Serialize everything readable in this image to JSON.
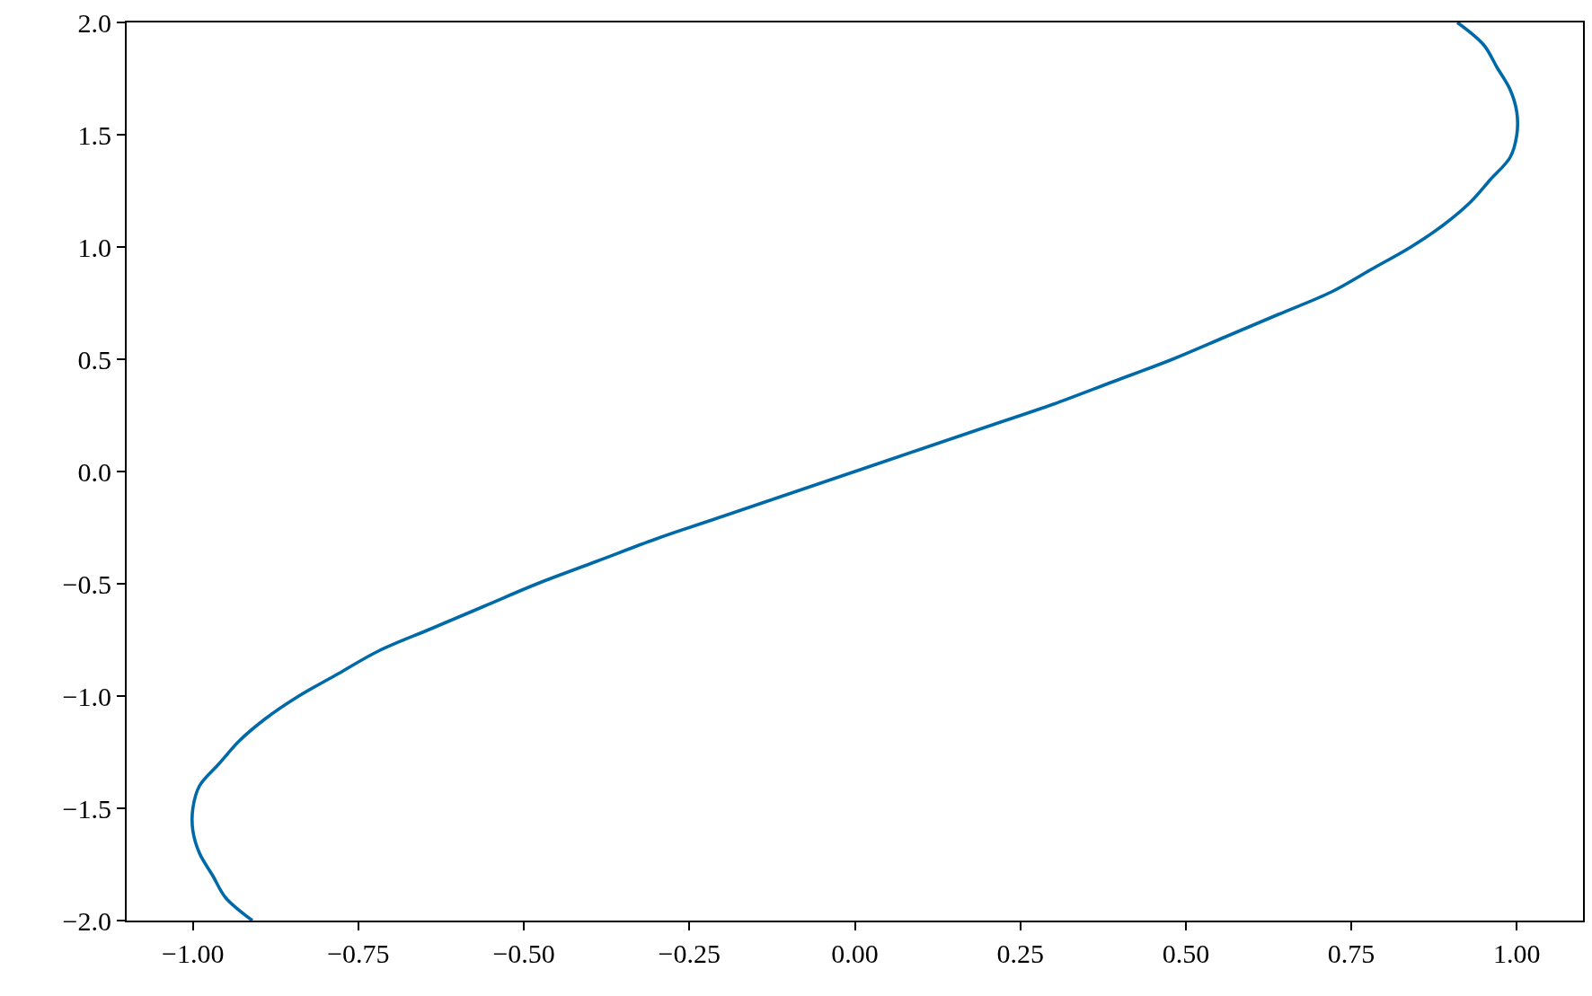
{
  "chart_data": {
    "type": "line",
    "series": [
      {
        "color": "#0069a8",
        "x": [
          -0.91,
          -0.95,
          -0.97,
          -0.99,
          -1.0,
          -1.0,
          -0.99,
          -0.96,
          -0.93,
          -0.89,
          -0.84,
          -0.78,
          -0.72,
          -0.64,
          -0.56,
          -0.48,
          -0.39,
          -0.3,
          -0.2,
          -0.1,
          0,
          0.1,
          0.2,
          0.3,
          0.39,
          0.48,
          0.56,
          0.64,
          0.72,
          0.78,
          0.84,
          0.89,
          0.93,
          0.96,
          0.99,
          1.0,
          1.0,
          0.99,
          0.97,
          0.95,
          0.91
        ],
        "values": [
          -2.0,
          -1.9,
          -1.8,
          -1.7,
          -1.6,
          -1.5,
          -1.4,
          -1.3,
          -1.2,
          -1.1,
          -1.0,
          -0.9,
          -0.8,
          -0.7,
          -0.6,
          -0.5,
          -0.4,
          -0.3,
          -0.2,
          -0.1,
          0,
          0.1,
          0.2,
          0.3,
          0.4,
          0.5,
          0.6,
          0.7,
          0.8,
          0.9,
          1.0,
          1.1,
          1.2,
          1.3,
          1.4,
          1.5,
          1.6,
          1.7,
          1.8,
          1.9,
          2.0
        ]
      }
    ],
    "xlim": [
      -1.1,
      1.1
    ],
    "ylim": [
      -2,
      2
    ],
    "xticks": [
      {
        "value": -1,
        "label": "−1.00"
      },
      {
        "value": -0.75,
        "label": "−0.75"
      },
      {
        "value": -0.5,
        "label": "−0.50"
      },
      {
        "value": -0.25,
        "label": "−0.25"
      },
      {
        "value": 0,
        "label": "0.00"
      },
      {
        "value": 0.25,
        "label": "0.25"
      },
      {
        "value": 0.5,
        "label": "0.50"
      },
      {
        "value": 0.75,
        "label": "0.75"
      },
      {
        "value": 1,
        "label": "1.00"
      }
    ],
    "yticks": [
      {
        "value": -2,
        "label": "−2.0"
      },
      {
        "value": -1.5,
        "label": "−1.5"
      },
      {
        "value": -1,
        "label": "−1.0"
      },
      {
        "value": -0.5,
        "label": "−0.5"
      },
      {
        "value": 0,
        "label": "0.0"
      },
      {
        "value": 0.5,
        "label": "0.5"
      },
      {
        "value": 1,
        "label": "1.0"
      },
      {
        "value": 1.5,
        "label": "1.5"
      },
      {
        "value": 2,
        "label": "2.0"
      }
    ],
    "grid": false
  }
}
